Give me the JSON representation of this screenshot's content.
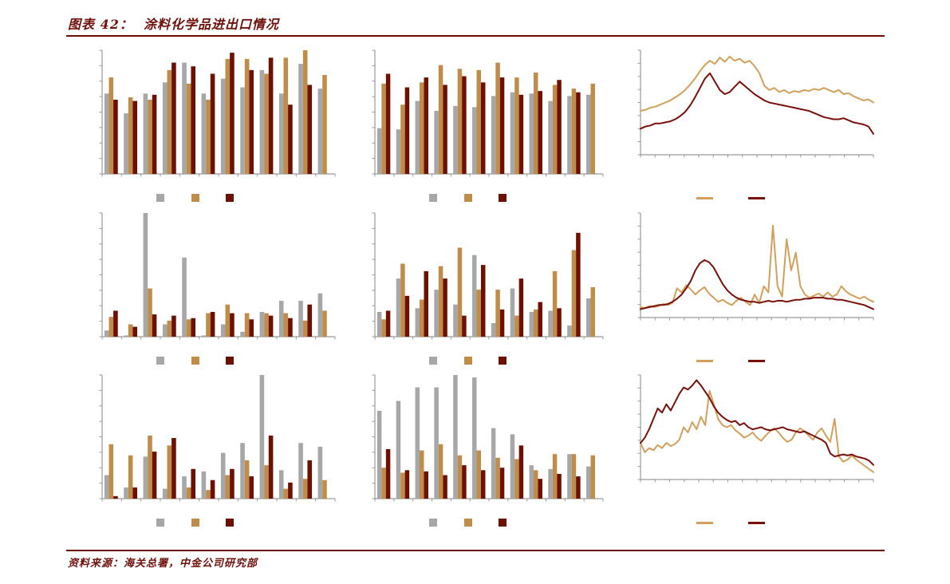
{
  "header": {
    "title": "图表 42：  涂料化学品进出口情况"
  },
  "footer": {
    "source": "资料来源：海关总署，中金公司研究部"
  },
  "colors": {
    "accent_dark_red": "#70100a",
    "bar_gray": "#a7a7a7",
    "bar_gold": "#c08c49",
    "bar_maroon": "#6e1000",
    "line_gold": "#d2a05a",
    "line_maroon": "#7a100a",
    "axis_gray": "#9a9a9a"
  },
  "notes": {
    "axis_labels": "no axis tick labels or legend text are visible in the image",
    "values_unit": "estimated percent of plot height (no numeric axis labels shown)"
  },
  "chart_data": [
    {
      "type": "bar",
      "position": "row1-col1",
      "title": "",
      "xlabel": "",
      "ylabel": "",
      "n_groups": 12,
      "ylim": [
        0,
        100
      ],
      "legend": [
        "gray",
        "gold",
        "maroon"
      ],
      "series": [
        {
          "name": "gray",
          "color_key": "bar_gray",
          "values": [
            65,
            49,
            65,
            74,
            90,
            65,
            77,
            70,
            84,
            65,
            89,
            69
          ]
        },
        {
          "name": "gold",
          "color_key": "bar_gold",
          "values": [
            78,
            62,
            60,
            84,
            73,
            60,
            93,
            93,
            81,
            94,
            100,
            80
          ]
        },
        {
          "name": "maroon",
          "color_key": "bar_maroon",
          "values": [
            60,
            59,
            64,
            90,
            87,
            81,
            98,
            84,
            94,
            56,
            72,
            0
          ]
        }
      ]
    },
    {
      "type": "bar",
      "position": "row1-col2",
      "title": "",
      "xlabel": "",
      "ylabel": "",
      "n_groups": 12,
      "ylim": [
        0,
        100
      ],
      "legend": [
        "gray",
        "gold",
        "maroon"
      ],
      "series": [
        {
          "name": "gray",
          "color_key": "bar_gray",
          "values": [
            37,
            36,
            59,
            51,
            55,
            54,
            63,
            66,
            65,
            59,
            63,
            64
          ]
        },
        {
          "name": "gold",
          "color_key": "bar_gold",
          "values": [
            73,
            56,
            74,
            88,
            85,
            84,
            90,
            78,
            82,
            72,
            69,
            73
          ]
        },
        {
          "name": "maroon",
          "color_key": "bar_maroon",
          "values": [
            81,
            70,
            78,
            72,
            79,
            74,
            78,
            64,
            67,
            76,
            66,
            0
          ]
        }
      ]
    },
    {
      "type": "line",
      "position": "row1-col3",
      "title": "",
      "xlabel": "",
      "ylabel": "",
      "ylim": [
        0,
        100
      ],
      "legend": [
        "gold",
        "maroon"
      ],
      "series": [
        {
          "name": "gold",
          "color_key": "line_gold",
          "values": [
            42,
            43,
            45,
            46,
            48,
            50,
            52,
            55,
            58,
            62,
            67,
            73,
            80,
            86,
            90,
            87,
            93,
            89,
            94,
            90,
            92,
            88,
            90,
            85,
            78,
            66,
            62,
            64,
            60,
            62,
            59,
            61,
            60,
            62,
            61,
            63,
            62,
            64,
            62,
            60,
            62,
            58,
            59,
            56,
            54,
            52,
            53,
            50
          ]
        },
        {
          "name": "maroon",
          "color_key": "line_maroon",
          "values": [
            25,
            27,
            28,
            30,
            30,
            31,
            32,
            34,
            37,
            41,
            47,
            55,
            64,
            73,
            78,
            70,
            62,
            58,
            60,
            65,
            70,
            66,
            62,
            58,
            55,
            52,
            50,
            49,
            48,
            47,
            46,
            45,
            44,
            43,
            42,
            40,
            38,
            36,
            35,
            34,
            34,
            35,
            33,
            31,
            30,
            29,
            27,
            20
          ]
        }
      ]
    },
    {
      "type": "bar",
      "position": "row2-col1",
      "title": "",
      "xlabel": "",
      "ylabel": "",
      "n_groups": 12,
      "ylim": [
        0,
        100
      ],
      "legend": [
        "gray",
        "gold",
        "maroon"
      ],
      "series": [
        {
          "name": "gray",
          "color_key": "bar_gray",
          "values": [
            5,
            1,
            100,
            10,
            64,
            1,
            10,
            4,
            20,
            29,
            29,
            35
          ]
        },
        {
          "name": "gold",
          "color_key": "bar_gold",
          "values": [
            16,
            10,
            39,
            13,
            14,
            19,
            26,
            19,
            19,
            19,
            13,
            21
          ]
        },
        {
          "name": "maroon",
          "color_key": "bar_maroon",
          "values": [
            21,
            8,
            18,
            17,
            15,
            20,
            19,
            14,
            17,
            15,
            26,
            0
          ]
        }
      ]
    },
    {
      "type": "bar",
      "position": "row2-col2",
      "title": "",
      "xlabel": "",
      "ylabel": "",
      "n_groups": 12,
      "ylim": [
        0,
        100
      ],
      "legend": [
        "gray",
        "gold",
        "maroon"
      ],
      "series": [
        {
          "name": "gray",
          "color_key": "bar_gray",
          "values": [
            20,
            47,
            23,
            38,
            26,
            66,
            11,
            39,
            20,
            21,
            9,
            31
          ]
        },
        {
          "name": "gold",
          "color_key": "bar_gold",
          "values": [
            14,
            59,
            30,
            57,
            72,
            38,
            38,
            17,
            22,
            53,
            70,
            40
          ]
        },
        {
          "name": "maroon",
          "color_key": "bar_maroon",
          "values": [
            21,
            33,
            53,
            47,
            17,
            58,
            22,
            47,
            28,
            23,
            84,
            0
          ]
        }
      ]
    },
    {
      "type": "line",
      "position": "row2-col3",
      "title": "",
      "xlabel": "",
      "ylabel": "",
      "ylim": [
        0,
        100
      ],
      "legend": [
        "gold",
        "maroon"
      ],
      "series": [
        {
          "name": "gold",
          "color_key": "line_gold",
          "values": [
            10,
            9,
            11,
            10,
            11,
            13,
            12,
            14,
            28,
            24,
            31,
            27,
            22,
            26,
            29,
            23,
            19,
            15,
            17,
            14,
            12,
            16,
            19,
            15,
            12,
            22,
            14,
            30,
            24,
            88,
            30,
            20,
            75,
            45,
            62,
            30,
            22,
            19,
            21,
            23,
            20,
            24,
            20,
            22,
            30,
            25,
            22,
            20,
            18,
            20,
            17,
            15
          ]
        },
        {
          "name": "maroon",
          "color_key": "line_maroon",
          "values": [
            8,
            9,
            10,
            11,
            12,
            12,
            13,
            15,
            18,
            22,
            28,
            35,
            45,
            52,
            55,
            53,
            48,
            40,
            32,
            26,
            22,
            19,
            17,
            16,
            15,
            15,
            14,
            15,
            16,
            15,
            16,
            16,
            15,
            16,
            17,
            17,
            18,
            18,
            19,
            19,
            19,
            18,
            18,
            17,
            17,
            16,
            15,
            14,
            13,
            12,
            10,
            8
          ]
        }
      ]
    },
    {
      "type": "bar",
      "position": "row3-col1",
      "title": "",
      "xlabel": "",
      "ylabel": "",
      "n_groups": 12,
      "ylim": [
        0,
        100
      ],
      "legend": [
        "gray",
        "gold",
        "maroon"
      ],
      "series": [
        {
          "name": "gray",
          "color_key": "bar_gray",
          "values": [
            19,
            9,
            34,
            8,
            18,
            22,
            37,
            45,
            100,
            23,
            45,
            42
          ]
        },
        {
          "name": "gold",
          "color_key": "bar_gold",
          "values": [
            44,
            35,
            51,
            43,
            9,
            7,
            19,
            31,
            27,
            8,
            16,
            15
          ]
        },
        {
          "name": "maroon",
          "color_key": "bar_maroon",
          "values": [
            2,
            9,
            38,
            49,
            24,
            15,
            24,
            18,
            51,
            13,
            31,
            0
          ]
        }
      ]
    },
    {
      "type": "bar",
      "position": "row3-col2",
      "title": "",
      "xlabel": "",
      "ylabel": "",
      "n_groups": 12,
      "ylim": [
        0,
        100
      ],
      "legend": [
        "gray",
        "gold",
        "maroon"
      ],
      "series": [
        {
          "name": "gray",
          "color_key": "bar_gray",
          "values": [
            71,
            79,
            90,
            90,
            100,
            98,
            57,
            52,
            27,
            24,
            36,
            26
          ]
        },
        {
          "name": "gold",
          "color_key": "bar_gold",
          "values": [
            25,
            21,
            39,
            44,
            35,
            39,
            33,
            32,
            23,
            36,
            36,
            35
          ]
        },
        {
          "name": "maroon",
          "color_key": "bar_maroon",
          "values": [
            40,
            23,
            22,
            19,
            27,
            23,
            25,
            43,
            16,
            20,
            18,
            0
          ]
        }
      ]
    },
    {
      "type": "line",
      "position": "row3-col3",
      "title": "",
      "xlabel": "",
      "ylabel": "",
      "ylim": [
        0,
        100
      ],
      "legend": [
        "gold",
        "maroon"
      ],
      "series": [
        {
          "name": "gold",
          "color_key": "line_gold",
          "values": [
            35,
            26,
            30,
            28,
            33,
            30,
            35,
            32,
            34,
            38,
            50,
            45,
            55,
            48,
            60,
            52,
            85,
            72,
            58,
            52,
            50,
            52,
            47,
            44,
            40,
            42,
            45,
            40,
            37,
            42,
            46,
            49,
            45,
            40,
            36,
            38,
            45,
            49,
            46,
            42,
            38,
            45,
            49,
            42,
            36,
            58,
            22,
            17,
            19,
            23,
            19,
            16,
            13,
            10,
            7
          ]
        },
        {
          "name": "maroon",
          "color_key": "line_maroon",
          "values": [
            35,
            40,
            48,
            58,
            68,
            64,
            72,
            66,
            74,
            82,
            88,
            86,
            90,
            95,
            90,
            84,
            78,
            70,
            64,
            60,
            57,
            55,
            56,
            52,
            54,
            50,
            48,
            49,
            50,
            48,
            47,
            48,
            49,
            50,
            48,
            47,
            46,
            45,
            46,
            44,
            42,
            40,
            38,
            35,
            25,
            22,
            23,
            24,
            23,
            24,
            22,
            21,
            20,
            18,
            14
          ]
        }
      ]
    }
  ]
}
